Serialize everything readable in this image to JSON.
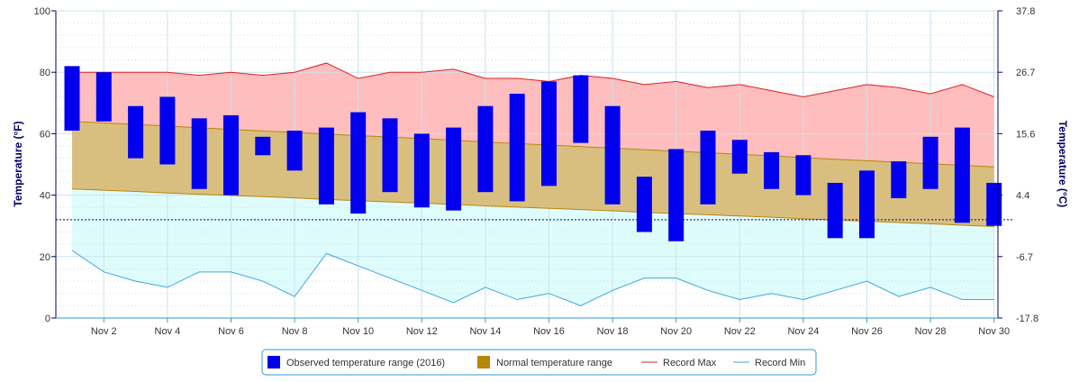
{
  "chart_data": {
    "type": "bar",
    "categories": [
      "Nov 1",
      "Nov 2",
      "Nov 3",
      "Nov 4",
      "Nov 5",
      "Nov 6",
      "Nov 7",
      "Nov 8",
      "Nov 9",
      "Nov 10",
      "Nov 11",
      "Nov 12",
      "Nov 13",
      "Nov 14",
      "Nov 15",
      "Nov 16",
      "Nov 17",
      "Nov 18",
      "Nov 19",
      "Nov 20",
      "Nov 21",
      "Nov 22",
      "Nov 23",
      "Nov 24",
      "Nov 25",
      "Nov 26",
      "Nov 27",
      "Nov 28",
      "Nov 29",
      "Nov 30"
    ],
    "x_tick_labels": [
      {
        "day": 2,
        "label": "Nov 2"
      },
      {
        "day": 4,
        "label": "Nov 4"
      },
      {
        "day": 6,
        "label": "Nov 6"
      },
      {
        "day": 8,
        "label": "Nov 8"
      },
      {
        "day": 10,
        "label": "Nov 10"
      },
      {
        "day": 12,
        "label": "Nov 12"
      },
      {
        "day": 14,
        "label": "Nov 14"
      },
      {
        "day": 16,
        "label": "Nov 16"
      },
      {
        "day": 18,
        "label": "Nov 18"
      },
      {
        "day": 20,
        "label": "Nov 20"
      },
      {
        "day": 22,
        "label": "Nov 22"
      },
      {
        "day": 24,
        "label": "Nov 24"
      },
      {
        "day": 26,
        "label": "Nov 26"
      },
      {
        "day": 28,
        "label": "Nov 28"
      },
      {
        "day": 30,
        "label": "Nov 30"
      }
    ],
    "ylabel": "Temperature (°F)",
    "ylabel_right": "Temperature (°C)",
    "ylim": [
      0,
      100
    ],
    "y_ticks": [
      0,
      20,
      40,
      60,
      80,
      100
    ],
    "y_ticks_right": [
      "-17.8",
      "-6.7",
      "4.4",
      "15.6",
      "26.7",
      "37.8"
    ],
    "freezing_line": 32,
    "grid": true,
    "legend_position": "bottom-center",
    "series": [
      {
        "name": "Observed temperature range (2016)",
        "kind": "range-bar",
        "color": "#0000ee",
        "low": [
          61,
          64,
          52,
          50,
          42,
          40,
          53,
          48,
          37,
          34,
          41,
          36,
          35,
          41,
          38,
          43,
          57,
          37,
          28,
          25,
          37,
          47,
          42,
          40,
          26,
          26,
          39,
          42,
          31,
          30
        ],
        "high": [
          82,
          80,
          69,
          72,
          65,
          66,
          59,
          61,
          62,
          67,
          65,
          60,
          62,
          69,
          73,
          77,
          79,
          69,
          46,
          55,
          61,
          58,
          54,
          53,
          44,
          48,
          51,
          59,
          62,
          44
        ]
      },
      {
        "name": "Normal temperature range",
        "kind": "area-range",
        "color": "#b8860b",
        "low": [
          42,
          41.6,
          41.2,
          40.7,
          40.3,
          39.9,
          39.5,
          39.1,
          38.6,
          38.2,
          37.8,
          37.4,
          37,
          36.5,
          36.1,
          35.7,
          35.3,
          34.9,
          34.4,
          34,
          33.6,
          33.2,
          32.8,
          32.3,
          31.9,
          31.5,
          31.1,
          30.7,
          30.2,
          29.8
        ],
        "high": [
          64,
          63.5,
          63,
          62.5,
          61.9,
          61.4,
          60.9,
          60.4,
          59.9,
          59.4,
          58.9,
          58.4,
          57.9,
          57.3,
          56.8,
          56.3,
          55.8,
          55.3,
          54.8,
          54.3,
          53.8,
          53.3,
          52.8,
          52.2,
          51.7,
          51.2,
          50.7,
          50.2,
          49.7,
          49.2
        ]
      },
      {
        "name": "Record Max",
        "kind": "line",
        "color": "#e02020",
        "values": [
          80,
          80,
          80,
          80,
          79,
          80,
          79,
          80,
          83,
          78,
          80,
          80,
          81,
          78,
          78,
          77,
          79,
          78,
          76,
          77,
          75,
          76,
          74,
          72,
          74,
          76,
          75,
          73,
          76,
          72
        ]
      },
      {
        "name": "Record Min",
        "kind": "line",
        "color": "#3aa8e0",
        "values": [
          22,
          15,
          12,
          10,
          15,
          15,
          12,
          7,
          21,
          17,
          13,
          9,
          5,
          10,
          6,
          8,
          4,
          9,
          13,
          13,
          9,
          6,
          8,
          6,
          9,
          12,
          7,
          10,
          6,
          6
        ]
      }
    ]
  }
}
